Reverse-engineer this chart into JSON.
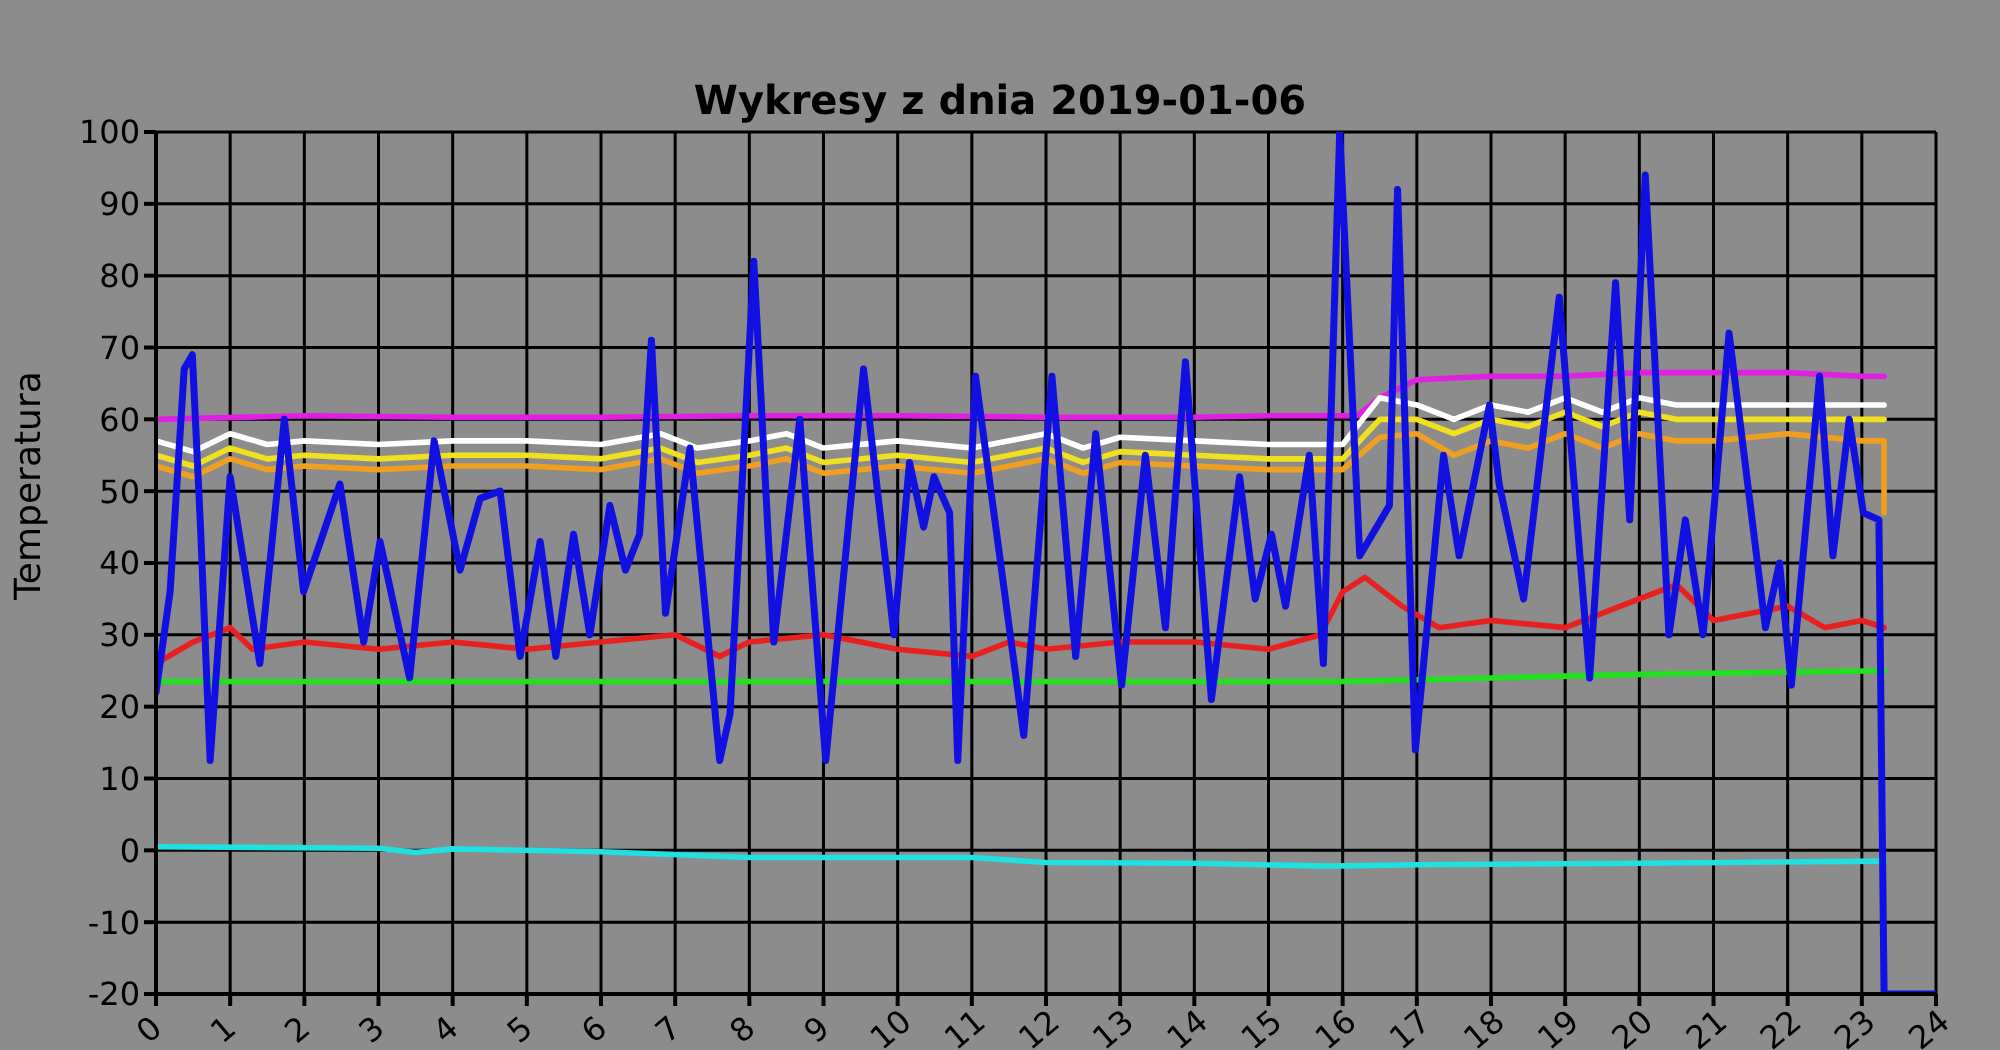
{
  "chart_data": {
    "type": "line",
    "title": "Wykresy z dnia 2019-01-06",
    "ylabel": "Temperatura",
    "xlim": [
      0,
      24
    ],
    "xticks": [
      0,
      1,
      2,
      3,
      4,
      5,
      6,
      7,
      8,
      9,
      10,
      11,
      12,
      13,
      14,
      15,
      16,
      17,
      18,
      19,
      20,
      21,
      22,
      23,
      24
    ],
    "ylim": [
      -20,
      100
    ],
    "yticks": [
      -20,
      -10,
      0,
      10,
      20,
      30,
      40,
      50,
      60,
      70,
      80,
      90,
      100
    ],
    "grid": true,
    "marker": "none",
    "line_style": "solid",
    "series": [
      {
        "color": "#e020e0",
        "x": [
          0,
          2,
          4,
          6,
          8,
          10,
          12,
          14,
          15,
          16.2,
          16.5,
          17,
          18,
          19,
          20,
          21,
          22,
          23,
          23.3
        ],
        "values": [
          60,
          60.5,
          60.3,
          60.3,
          60.5,
          60.5,
          60.3,
          60.3,
          60.5,
          60.5,
          63,
          65.5,
          66,
          66,
          66.5,
          66.5,
          66.5,
          66,
          66
        ]
      },
      {
        "color": "#ffffff",
        "x": [
          0,
          0.5,
          1,
          1.5,
          2,
          3,
          4,
          5,
          6,
          6.8,
          7.3,
          8,
          8.5,
          9,
          10,
          11,
          12,
          12.5,
          13,
          14,
          15,
          16,
          16.5,
          17,
          17.5,
          18,
          18.5,
          19,
          19.5,
          20,
          20.5,
          21,
          22,
          23,
          23.3
        ],
        "values": [
          57,
          55.5,
          58,
          56.5,
          57,
          56.5,
          57,
          57,
          56.5,
          58,
          56,
          57,
          58,
          56,
          57,
          56,
          58,
          56,
          57.5,
          57,
          56.5,
          56.5,
          63,
          62,
          60,
          62,
          61,
          63,
          61,
          63,
          62,
          62,
          62,
          62,
          62
        ]
      },
      {
        "color": "#f0e020",
        "x": [
          0,
          0.5,
          1,
          1.5,
          2,
          3,
          4,
          5,
          6,
          6.8,
          7.3,
          8,
          8.5,
          9,
          10,
          11,
          12,
          12.5,
          13,
          14,
          15,
          16,
          16.5,
          17,
          17.5,
          18,
          18.5,
          19,
          19.5,
          20,
          20.5,
          21,
          22,
          23,
          23.3
        ],
        "values": [
          55,
          53.5,
          56,
          54.5,
          55,
          54.5,
          55,
          55,
          54.5,
          56,
          54,
          55,
          56,
          54,
          55,
          54,
          56,
          54,
          55.5,
          55,
          54.5,
          54.5,
          60,
          60,
          58,
          60,
          59,
          61,
          59,
          61,
          60,
          60,
          60,
          60,
          60
        ]
      },
      {
        "color": "#f0a020",
        "x": [
          0,
          0.5,
          1,
          1.5,
          2,
          3,
          4,
          5,
          6,
          6.8,
          7.3,
          8,
          8.5,
          9,
          10,
          11,
          12,
          12.5,
          13,
          14,
          15,
          16,
          16.5,
          17,
          17.5,
          18,
          18.5,
          19,
          19.5,
          20,
          20.5,
          21,
          22,
          23,
          23.3,
          23.3
        ],
        "values": [
          53.5,
          52,
          54.5,
          53,
          53.5,
          53,
          53.5,
          53.5,
          53,
          54.5,
          52.5,
          53.5,
          54.5,
          52.5,
          53.5,
          52.5,
          54.5,
          52.5,
          54,
          53.5,
          53,
          53,
          57.5,
          58,
          55,
          57,
          56,
          58,
          56,
          58,
          57,
          57,
          58,
          57,
          57,
          47
        ]
      },
      {
        "color": "#e82020",
        "x": [
          0,
          0.5,
          1,
          1.3,
          2,
          3,
          4,
          5,
          6,
          7,
          7.6,
          8,
          9,
          10,
          11,
          11.5,
          12,
          13,
          14,
          15,
          15.7,
          16,
          16.3,
          16.8,
          17.3,
          18,
          19,
          20,
          20.5,
          21,
          22,
          22.5,
          23,
          23.3
        ],
        "values": [
          26,
          29,
          31,
          28,
          29,
          28,
          29,
          28,
          29,
          30,
          27,
          29,
          30,
          28,
          27,
          29,
          28,
          29,
          29,
          28,
          30,
          36,
          38,
          34,
          31,
          32,
          31,
          35,
          37,
          32,
          34,
          31,
          32,
          31
        ]
      },
      {
        "color": "#20e020",
        "x": [
          0,
          8,
          16,
          18,
          20,
          23.3
        ],
        "values": [
          23.5,
          23.5,
          23.5,
          24,
          24.5,
          25
        ]
      },
      {
        "color": "#20e0e0",
        "x": [
          0,
          3,
          3.5,
          4,
          6,
          8,
          11,
          12,
          14,
          15.8,
          17,
          20,
          23.3
        ],
        "values": [
          0.5,
          0.3,
          -0.3,
          0.2,
          -0.2,
          -1,
          -1,
          -1.7,
          -1.8,
          -2.2,
          -2,
          -1.8,
          -1.5
        ]
      },
      {
        "color": "#1010e0",
        "x": [
          0,
          0.19,
          0.38,
          0.49,
          0.6,
          0.73,
          1.0,
          1.4,
          1.73,
          1.99,
          2.48,
          2.8,
          3.02,
          3.42,
          3.75,
          4.1,
          4.37,
          4.64,
          4.91,
          5.18,
          5.39,
          5.63,
          5.85,
          6.12,
          6.33,
          6.52,
          6.68,
          6.87,
          7.2,
          7.6,
          7.74,
          8.06,
          8.33,
          8.68,
          9.03,
          9.54,
          9.95,
          10.16,
          10.35,
          10.49,
          10.7,
          10.81,
          11.05,
          11.7,
          12.08,
          12.4,
          12.67,
          13.02,
          13.34,
          13.61,
          13.88,
          14.23,
          14.61,
          14.82,
          15.04,
          15.23,
          15.55,
          15.74,
          15.96,
          16.23,
          16.63,
          16.74,
          16.98,
          17.36,
          17.57,
          17.98,
          18.11,
          18.44,
          18.92,
          19.33,
          19.68,
          19.87,
          20.08,
          20.4,
          20.62,
          20.86,
          21.21,
          21.7,
          21.89,
          22.05,
          22.43,
          22.61,
          22.83,
          23.02,
          23.23,
          23.3,
          24
        ],
        "values": [
          22,
          36,
          67,
          69,
          45,
          12.5,
          52,
          26,
          60,
          36,
          51,
          29,
          43,
          24,
          57,
          39,
          49,
          50,
          27,
          43,
          27,
          44,
          30,
          48,
          39,
          44,
          71,
          33,
          56,
          12.5,
          19,
          82,
          29,
          60,
          12.5,
          67,
          30,
          54,
          45,
          52,
          47,
          12.5,
          66,
          16,
          66,
          27,
          58,
          23,
          55,
          31,
          68,
          21,
          52,
          35,
          44,
          34,
          55,
          26,
          100,
          41,
          48,
          92,
          14,
          55,
          41,
          62,
          51,
          35,
          77,
          24,
          79,
          46,
          94,
          30,
          46,
          30,
          72,
          31,
          40,
          23,
          66,
          41,
          60,
          47,
          46,
          -20,
          -20
        ]
      }
    ]
  }
}
